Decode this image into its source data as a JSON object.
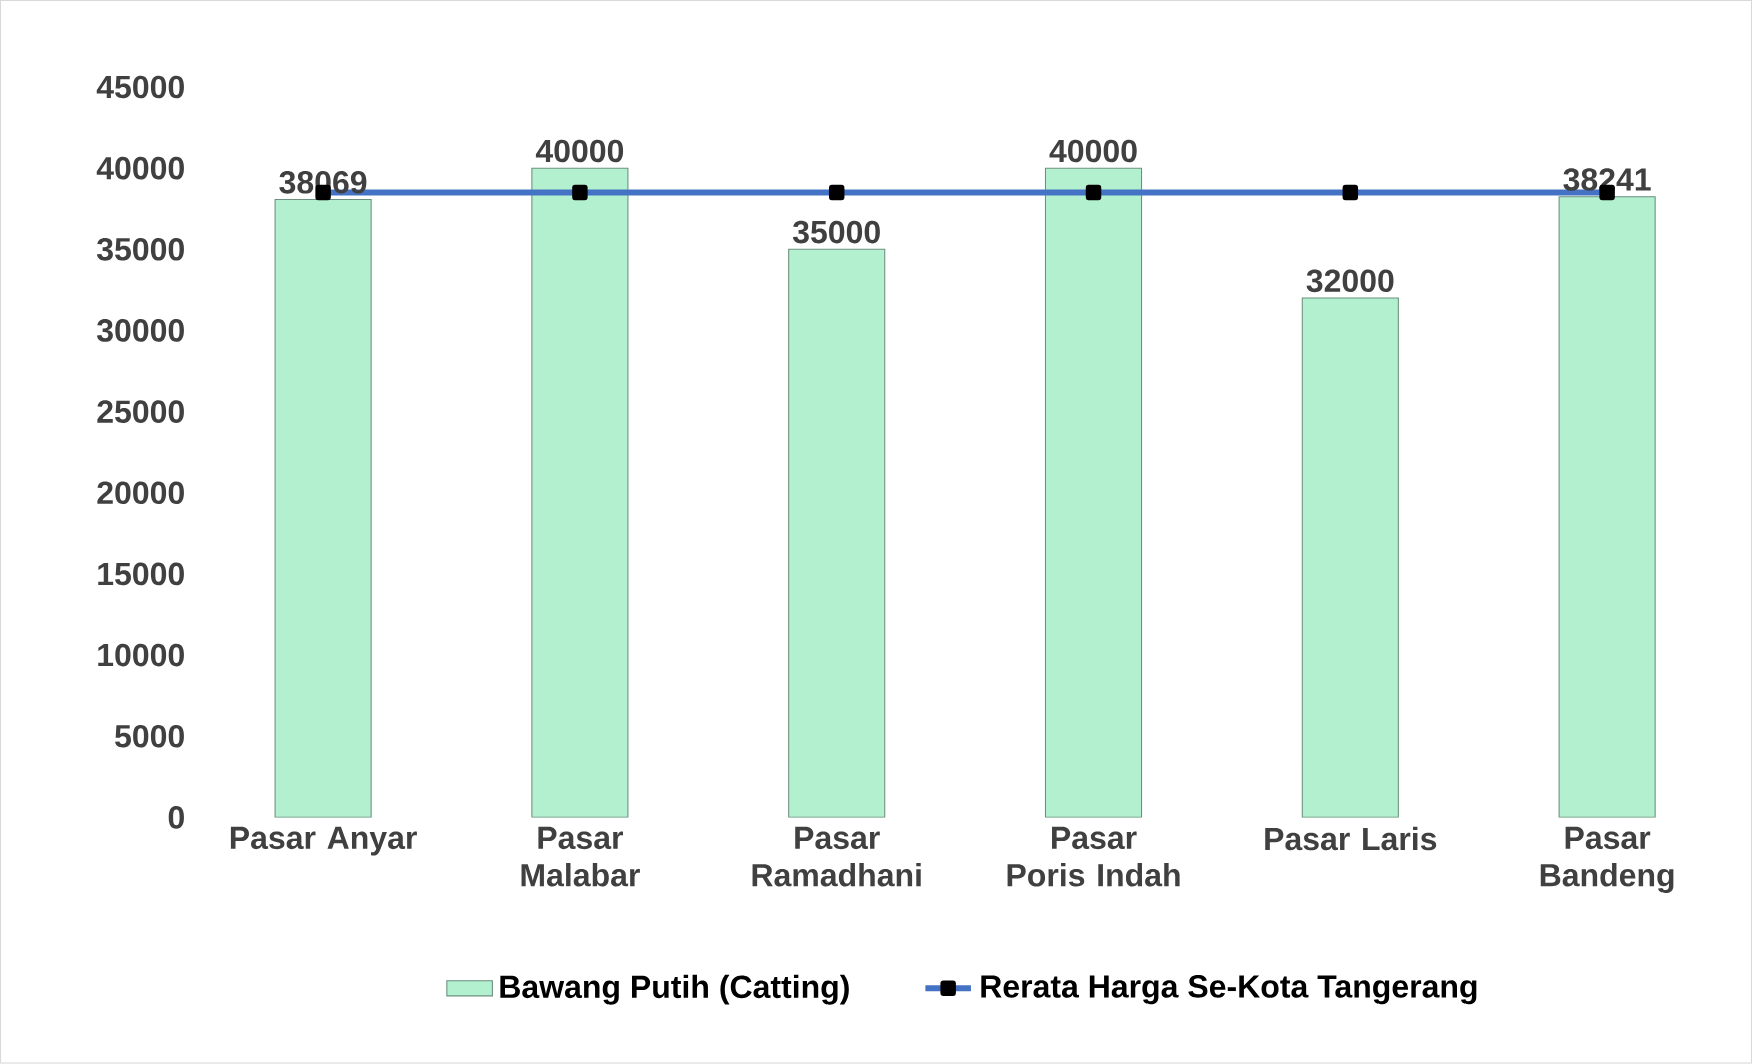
{
  "chart_data": {
    "type": "bar",
    "categories": [
      "Pasar Anyar",
      "Pasar Malabar",
      "Pasar Ramadhani",
      "Pasar Poris Indah",
      "Pasar Laris",
      "Pasar Bandeng"
    ],
    "series": [
      {
        "name": "Bawang Putih (Catting)",
        "color": "#b3f0d0",
        "values": [
          38069,
          40000,
          35000,
          40000,
          32000,
          38241
        ],
        "value_labels": [
          "38069",
          "40000",
          "35000",
          "40000",
          "32000",
          "38241"
        ]
      },
      {
        "name": "Rerata Harga Se-Kota Tangerang",
        "type": "line",
        "color": "#4472c4",
        "marker": "square",
        "values": [
          38500,
          38500,
          38500,
          38500,
          38500,
          38500
        ]
      }
    ],
    "ylim": [
      0,
      45000
    ],
    "yticks": [
      0,
      5000,
      10000,
      15000,
      20000,
      25000,
      30000,
      35000,
      40000,
      45000
    ],
    "grid": false,
    "legend": "bottom"
  }
}
